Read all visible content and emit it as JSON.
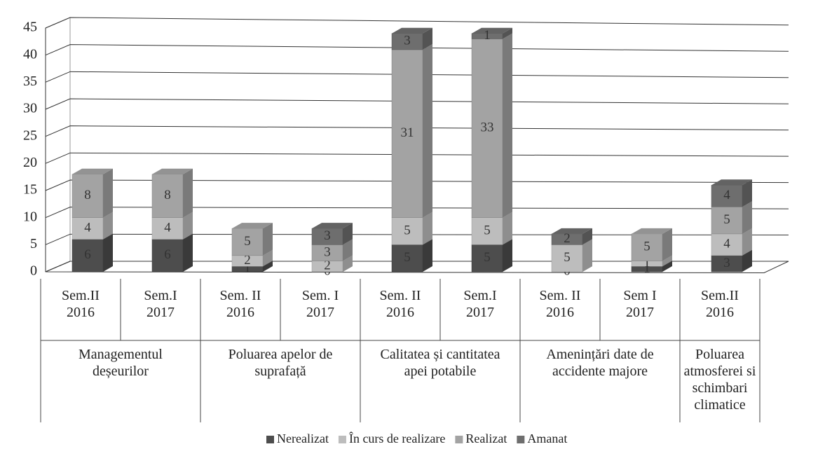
{
  "chart_data": {
    "type": "bar3d_stacked",
    "groups": [
      {
        "label": "Managementul deșeurilor",
        "categories": [
          "Sem.II 2016",
          "Sem.I 2017"
        ]
      },
      {
        "label": "Poluarea apelor de suprafață",
        "categories": [
          "Sem. II 2016",
          "Sem. I 2017"
        ]
      },
      {
        "label": "Calitatea și cantitatea apei potabile",
        "categories": [
          "Sem. II 2016",
          "Sem.I 2017"
        ]
      },
      {
        "label": "Amenințări date de accidente majore",
        "categories": [
          "Sem. II 2016",
          "Sem I 2017"
        ]
      },
      {
        "label": "Poluarea atmosferei si schimbari climatice",
        "categories": [
          "Sem.II 2016"
        ]
      }
    ],
    "series": [
      {
        "name": "Nerealizat",
        "color": "#4d4d4d",
        "values": [
          6,
          6,
          1,
          0,
          5,
          5,
          0,
          1,
          3
        ]
      },
      {
        "name": "În curs de realizare",
        "color": "#bdbdbd",
        "values": [
          4,
          4,
          2,
          2,
          5,
          5,
          5,
          1,
          4
        ]
      },
      {
        "name": "Realizat",
        "color": "#a3a3a3",
        "values": [
          8,
          8,
          5,
          3,
          31,
          33,
          null,
          5,
          5
        ]
      },
      {
        "name": "Amanat",
        "color": "#6e6e6e",
        "values": [
          null,
          null,
          null,
          3,
          3,
          1,
          2,
          null,
          4
        ]
      }
    ],
    "ylim": [
      0,
      45
    ],
    "yticks": [
      0,
      5,
      10,
      15,
      20,
      25,
      30,
      35,
      40,
      45
    ],
    "grid": true
  }
}
